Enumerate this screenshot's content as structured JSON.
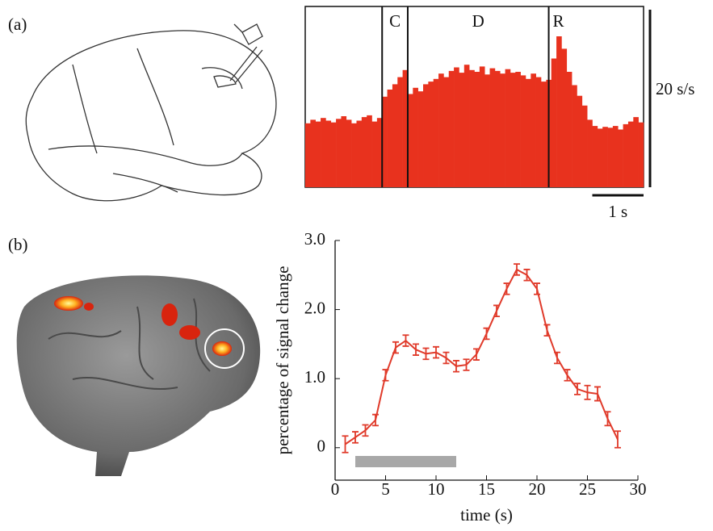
{
  "chart_data": [
    {
      "type": "histogram",
      "panel_label": "(a)",
      "color": "#e8321e",
      "bins": [
        0,
        0.1,
        0.2,
        0.3,
        0.4,
        0.5,
        0.6,
        0.7,
        0.8,
        0.9,
        1.0,
        1.1,
        1.2,
        1.3,
        1.4,
        1.5,
        1.6,
        1.7,
        1.8,
        1.9,
        2.0,
        2.1,
        2.2,
        2.3,
        2.4,
        2.5,
        2.6,
        2.7,
        2.8,
        2.9,
        3.0,
        3.1,
        3.2,
        3.3,
        3.4,
        3.5,
        3.6,
        3.7,
        3.8,
        3.9,
        4.0,
        4.1,
        4.2,
        4.3,
        4.4,
        4.5,
        4.6,
        4.7,
        4.8,
        4.9,
        5.0,
        5.1,
        5.2,
        5.3,
        5.4,
        5.5,
        5.6,
        5.7,
        5.8,
        5.9,
        6.0,
        6.1,
        6.2,
        6.3,
        6.4,
        6.5,
        6.6
      ],
      "values": [
        7.2,
        7.6,
        7.4,
        7.8,
        7.5,
        7.3,
        7.7,
        8.0,
        7.6,
        7.2,
        7.5,
        7.9,
        8.1,
        7.4,
        7.8,
        10.2,
        11.0,
        11.6,
        12.4,
        13.2,
        10.5,
        11.2,
        10.8,
        11.6,
        11.9,
        12.2,
        12.8,
        12.4,
        13.1,
        13.5,
        12.9,
        13.8,
        13.2,
        13.0,
        13.6,
        12.7,
        13.4,
        13.1,
        12.8,
        13.3,
        12.9,
        13.0,
        12.6,
        12.2,
        12.8,
        12.4,
        11.9,
        12.1,
        14.5,
        17.0,
        15.6,
        13.0,
        11.5,
        10.3,
        9.2,
        7.6,
        6.9,
        6.6,
        6.8,
        6.7,
        6.9,
        6.5,
        7.1,
        7.4,
        7.9,
        7.3
      ],
      "xlim": [
        0,
        6.6
      ],
      "ylim": [
        0,
        20
      ],
      "epochs": [
        {
          "label": "C",
          "start": 1.5
        },
        {
          "label": "D",
          "start": 2.0
        },
        {
          "label": "R",
          "start": 4.75
        }
      ],
      "scale_bars": {
        "y": {
          "value": 20,
          "label": "20 s/s"
        },
        "x": {
          "value": 1,
          "label": "1 s"
        }
      }
    },
    {
      "type": "line",
      "panel_label": "(b)",
      "color": "#e03a2a",
      "x_label": "time (s)",
      "y_label": "percentage of signal change",
      "x": [
        1,
        2,
        3,
        4,
        5,
        6,
        7,
        8,
        9,
        10,
        11,
        12,
        13,
        14,
        15,
        16,
        17,
        18,
        19,
        20,
        21,
        22,
        23,
        24,
        25,
        26,
        27,
        28
      ],
      "values": [
        0.05,
        0.15,
        0.25,
        0.4,
        1.05,
        1.45,
        1.55,
        1.42,
        1.36,
        1.38,
        1.3,
        1.18,
        1.2,
        1.35,
        1.65,
        1.98,
        2.3,
        2.58,
        2.5,
        2.3,
        1.7,
        1.3,
        1.05,
        0.85,
        0.8,
        0.78,
        0.42,
        0.12
      ],
      "errors": [
        0.12,
        0.08,
        0.08,
        0.08,
        0.08,
        0.08,
        0.08,
        0.08,
        0.08,
        0.08,
        0.08,
        0.08,
        0.08,
        0.08,
        0.08,
        0.08,
        0.08,
        0.08,
        0.08,
        0.08,
        0.08,
        0.08,
        0.08,
        0.08,
        0.1,
        0.1,
        0.1,
        0.12
      ],
      "stimulus": [
        2,
        12
      ],
      "stimulus_color": "#a8a8a8",
      "xlim": [
        0,
        30
      ],
      "ylim": [
        -0.47,
        3.0
      ],
      "xticks": [
        0,
        5,
        10,
        15,
        20,
        25,
        30
      ],
      "yticks": [
        0,
        {
          "value": 1,
          "label": "1.0"
        },
        {
          "value": 2,
          "label": "2.0"
        },
        {
          "value": 3,
          "label": "3.0"
        }
      ]
    }
  ]
}
